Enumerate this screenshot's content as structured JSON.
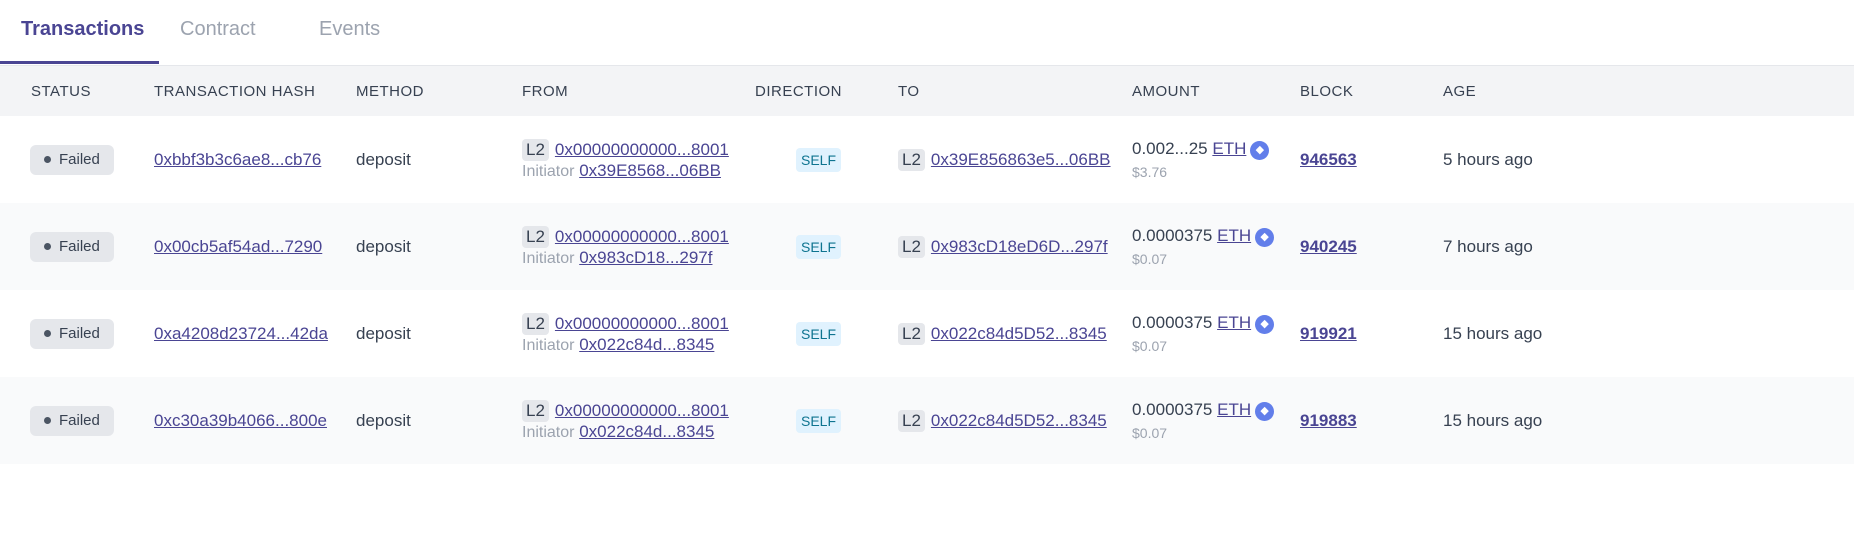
{
  "tabs": [
    "Transactions",
    "Contract",
    "Events"
  ],
  "columns": [
    "STATUS",
    "TRANSACTION HASH",
    "METHOD",
    "FROM",
    "DIRECTION",
    "TO",
    "AMOUNT",
    "BLOCK",
    "AGE"
  ],
  "colors": {
    "accent": "#4a4593",
    "eth": "#627eea"
  },
  "rows": [
    {
      "status": "Failed",
      "hash": "0xbbf3b3c6ae8...cb76",
      "method": "deposit",
      "from_net": "L2",
      "from": "0x00000000000...8001",
      "initiator_label": "Initiator",
      "initiator": "0x39E8568...06BB",
      "direction": "SELF",
      "to_net": "L2",
      "to": "0x39E856863e5...06BB",
      "amount": "0.002...25",
      "token": "ETH",
      "usd": "$3.76",
      "block": "946563",
      "age": "5 hours ago"
    },
    {
      "status": "Failed",
      "hash": "0x00cb5af54ad...7290",
      "method": "deposit",
      "from_net": "L2",
      "from": "0x00000000000...8001",
      "initiator_label": "Initiator",
      "initiator": "0x983cD18...297f",
      "direction": "SELF",
      "to_net": "L2",
      "to": "0x983cD18eD6D...297f",
      "amount": "0.0000375",
      "token": "ETH",
      "usd": "$0.07",
      "block": "940245",
      "age": "7 hours ago"
    },
    {
      "status": "Failed",
      "hash": "0xa4208d23724...42da",
      "method": "deposit",
      "from_net": "L2",
      "from": "0x00000000000...8001",
      "initiator_label": "Initiator",
      "initiator": "0x022c84d...8345",
      "direction": "SELF",
      "to_net": "L2",
      "to": "0x022c84d5D52...8345",
      "amount": "0.0000375",
      "token": "ETH",
      "usd": "$0.07",
      "block": "919921",
      "age": "15 hours ago"
    },
    {
      "status": "Failed",
      "hash": "0xc30a39b4066...800e",
      "method": "deposit",
      "from_net": "L2",
      "from": "0x00000000000...8001",
      "initiator_label": "Initiator",
      "initiator": "0x022c84d...8345",
      "direction": "SELF",
      "to_net": "L2",
      "to": "0x022c84d5D52...8345",
      "amount": "0.0000375",
      "token": "ETH",
      "usd": "$0.07",
      "block": "919883",
      "age": "15 hours ago"
    }
  ]
}
